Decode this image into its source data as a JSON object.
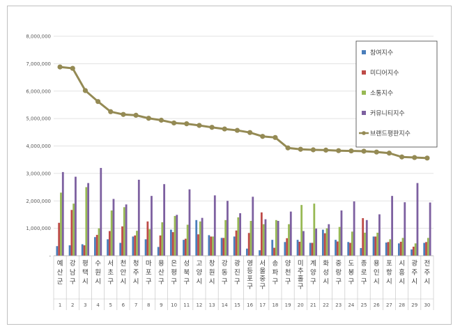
{
  "chart_data": {
    "type": "bar",
    "title": "",
    "xlabel": "",
    "ylabel": "",
    "ylim": [
      0,
      8000000
    ],
    "yticks": [
      "-",
      "1,000,000",
      "2,000,000",
      "3,000,000",
      "4,000,000",
      "5,000,000",
      "6,000,000",
      "7,000,000",
      "8,000,000"
    ],
    "categories": [
      "예산군",
      "강남구",
      "평택시",
      "수원시",
      "서초구",
      "천안시",
      "청주시",
      "마포구",
      "용산구",
      "은평구",
      "성북구",
      "고양시",
      "창원시",
      "강동구",
      "광진구",
      "영등포구",
      "서울 중구",
      "송파구",
      "양천구",
      "미추홀구",
      "계양구",
      "화성시",
      "중랑구",
      "도봉구",
      "종로구",
      "용인시",
      "포항시",
      "시흥시",
      "광주시",
      "전주시"
    ],
    "ranks": [
      "1",
      "2",
      "3",
      "4",
      "5",
      "6",
      "7",
      "8",
      "9",
      "10",
      "11",
      "12",
      "13",
      "14",
      "15",
      "16",
      "17",
      "18",
      "19",
      "20",
      "21",
      "22",
      "23",
      "24",
      "25",
      "26",
      "27",
      "28",
      "29",
      "30"
    ],
    "legend": {
      "position": "right",
      "entries": [
        "참여지수",
        "미디어지수",
        "소통지수",
        "커뮤니티지수",
        "브랜드평판지수"
      ]
    },
    "colors": {
      "참여지수": "#4a7ebb",
      "미디어지수": "#be4b48",
      "소통지수": "#98b954",
      "커뮤니티지수": "#7d60a0",
      "브랜드평판지수": "#948a54"
    },
    "series": [
      {
        "name": "참여지수",
        "kind": "bar",
        "values": [
          350000,
          380000,
          420000,
          680000,
          600000,
          470000,
          700000,
          600000,
          320000,
          950000,
          580000,
          1300000,
          750000,
          650000,
          700000,
          260000,
          200000,
          580000,
          500000,
          580000,
          470000,
          950000,
          580000,
          500000,
          280000,
          700000,
          480000,
          450000,
          230000,
          470000
        ]
      },
      {
        "name": "미디어지수",
        "kind": "bar",
        "values": [
          1200000,
          1670000,
          380000,
          760000,
          900000,
          1070000,
          740000,
          1250000,
          740000,
          860000,
          620000,
          780000,
          700000,
          650000,
          920000,
          830000,
          1580000,
          290000,
          640000,
          510000,
          470000,
          820000,
          520000,
          470000,
          1370000,
          700000,
          500000,
          510000,
          330000,
          500000
        ]
      },
      {
        "name": "소통지수",
        "kind": "bar",
        "values": [
          2300000,
          1900000,
          2500000,
          1000000,
          1650000,
          1770000,
          910000,
          970000,
          1220000,
          1450000,
          1130000,
          1250000,
          700000,
          1300000,
          1400000,
          1270000,
          1150000,
          1300000,
          1150000,
          1850000,
          1900000,
          1000000,
          1050000,
          880000,
          840000,
          840000,
          600000,
          650000,
          450000,
          650000
        ]
      },
      {
        "name": "커뮤니티지수",
        "kind": "bar",
        "values": [
          3050000,
          2880000,
          2650000,
          3200000,
          2070000,
          1870000,
          2770000,
          2180000,
          2610000,
          1490000,
          2420000,
          1380000,
          2200000,
          2000000,
          1550000,
          2150000,
          1330000,
          1270000,
          1610000,
          900000,
          990000,
          1150000,
          1650000,
          1980000,
          1300000,
          1510000,
          2180000,
          1950000,
          2650000,
          1940000
        ]
      },
      {
        "name": "브랜드평판지수",
        "kind": "line",
        "values": [
          6880000,
          6830000,
          6020000,
          5620000,
          5250000,
          5150000,
          5120000,
          5010000,
          4940000,
          4840000,
          4810000,
          4750000,
          4680000,
          4620000,
          4570000,
          4490000,
          4350000,
          4310000,
          3930000,
          3880000,
          3860000,
          3850000,
          3830000,
          3820000,
          3810000,
          3780000,
          3740000,
          3600000,
          3580000,
          3560000
        ]
      }
    ]
  }
}
